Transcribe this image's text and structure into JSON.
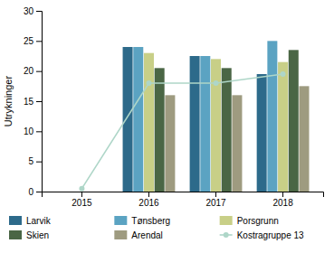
{
  "chart_data": {
    "type": "bar",
    "y_label": "Utrykninger",
    "categories": [
      "2015",
      "2016",
      "2017",
      "2018"
    ],
    "series": [
      {
        "name": "Larvik",
        "color": "#2d6a8a",
        "values": [
          null,
          24.0,
          22.5,
          19.5
        ]
      },
      {
        "name": "Tønsberg",
        "color": "#5ba3c2",
        "values": [
          null,
          24.0,
          22.5,
          25.0
        ]
      },
      {
        "name": "Porsgrunn",
        "color": "#c8cf87",
        "values": [
          null,
          23.0,
          22.0,
          21.5
        ]
      },
      {
        "name": "Skien",
        "color": "#4a6645",
        "values": [
          null,
          20.5,
          20.5,
          23.5
        ]
      },
      {
        "name": "Arendal",
        "color": "#9e9b80",
        "values": [
          null,
          16.0,
          16.0,
          17.5
        ]
      },
      {
        "name": "Kostragruppe 13",
        "type": "line",
        "color": "#aed6c8",
        "marker": "circle",
        "values": [
          0.5,
          18.0,
          18.0,
          19.5
        ]
      }
    ],
    "ylim": [
      0,
      30
    ],
    "yticks": [
      0,
      5,
      10,
      15,
      20,
      25,
      30
    ],
    "grid": false,
    "legend": "bottom"
  }
}
